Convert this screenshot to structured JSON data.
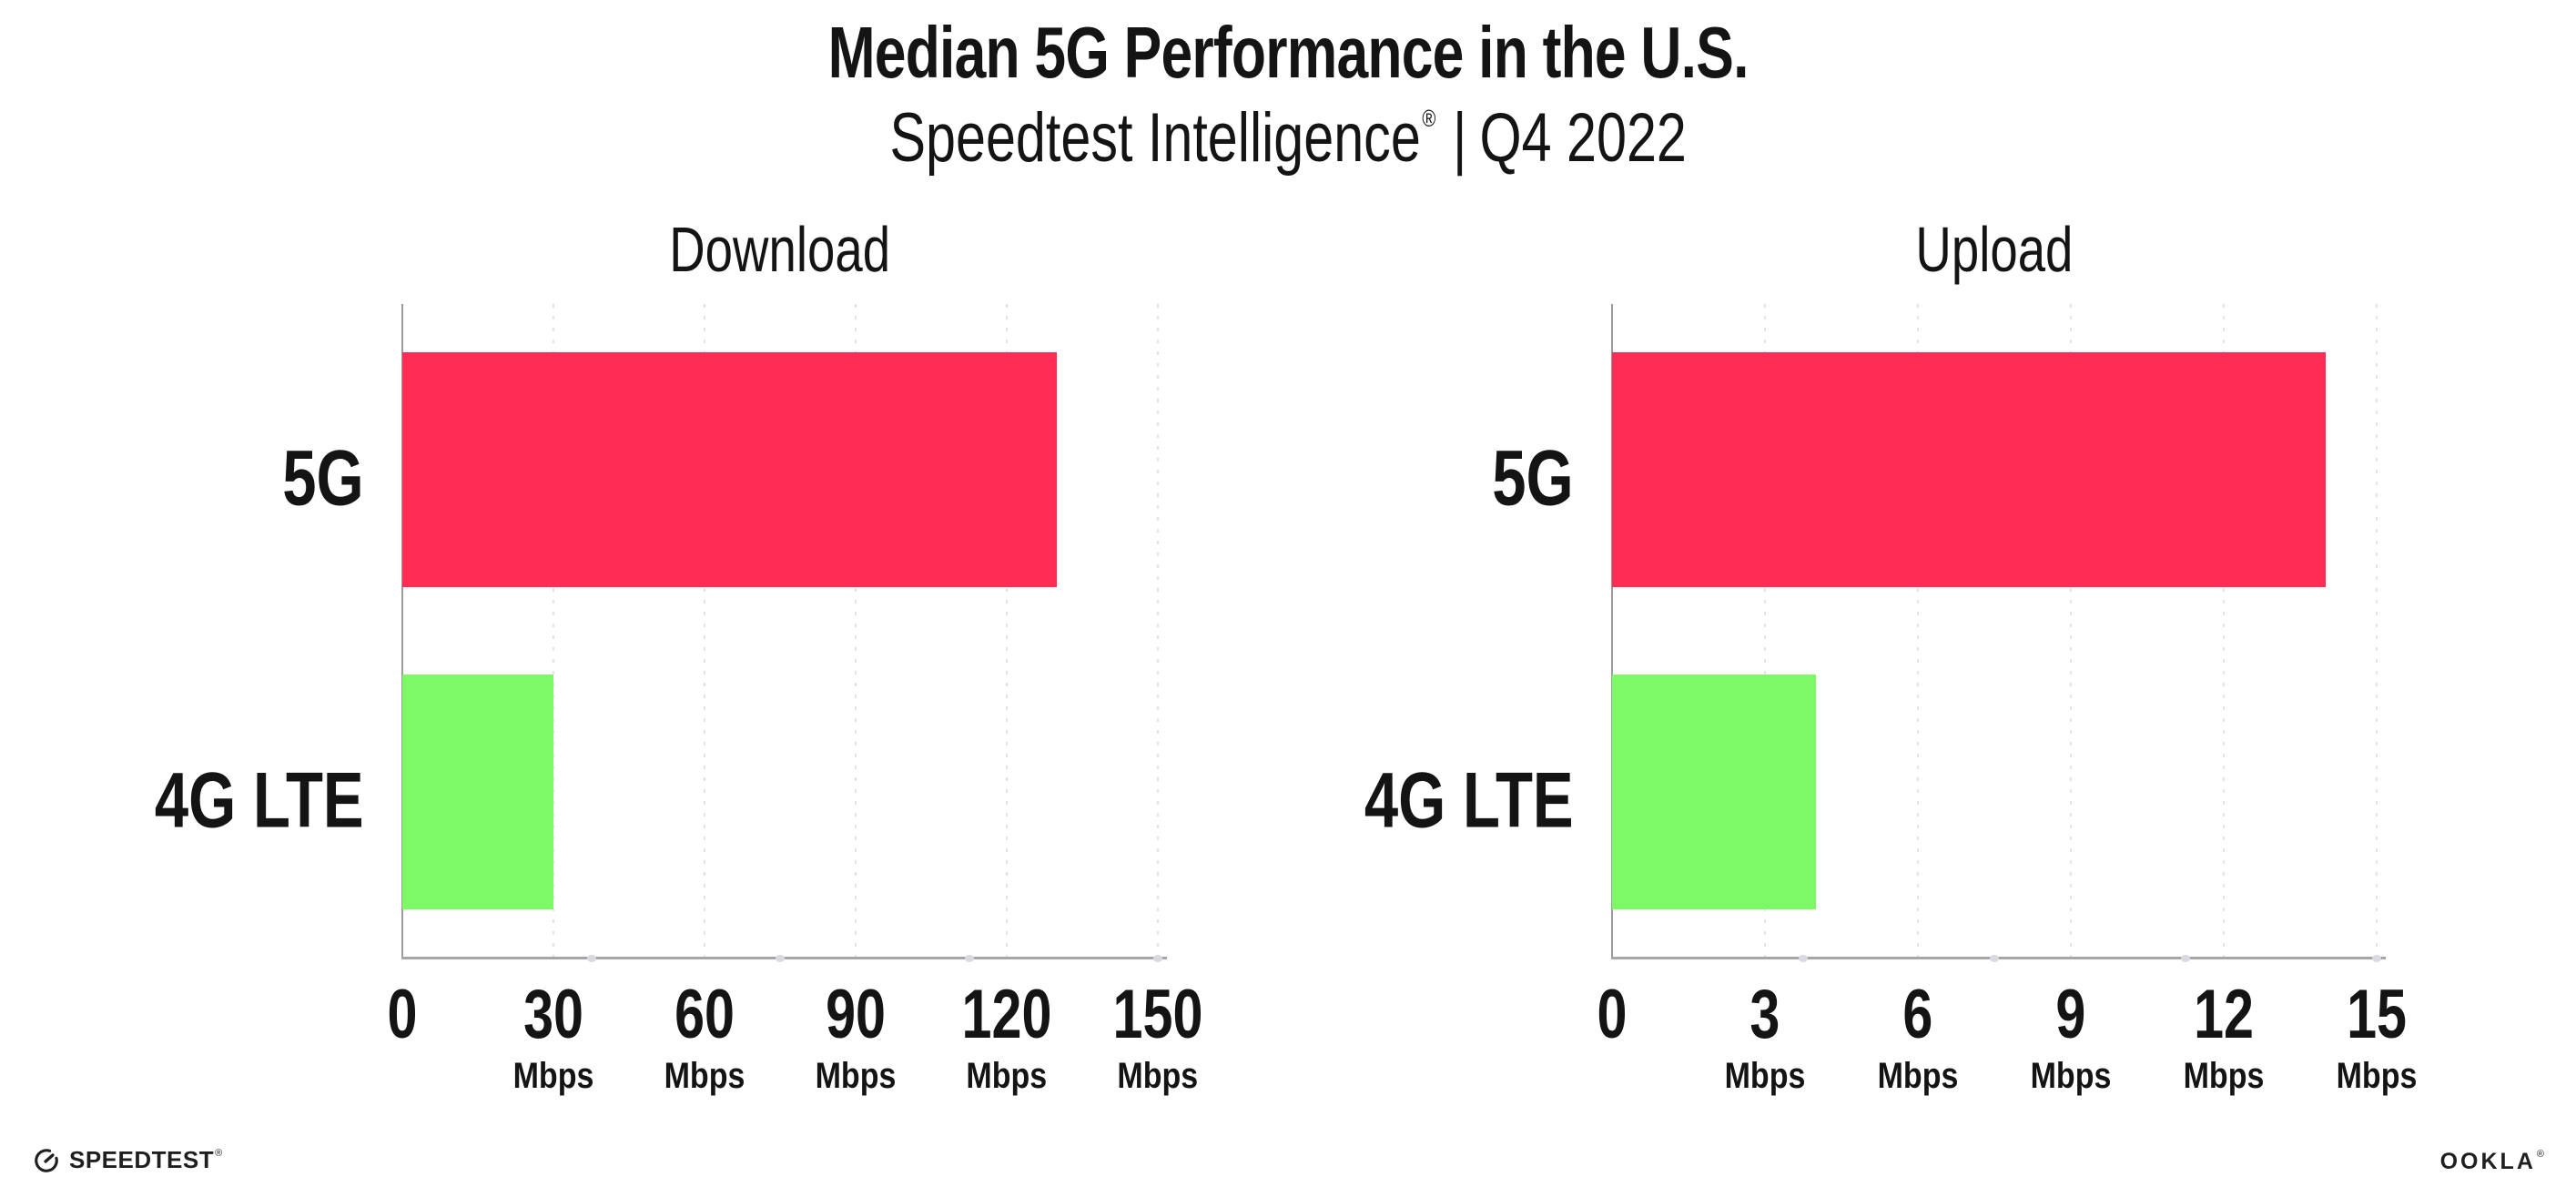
{
  "header": {
    "title": "Median 5G Performance in the U.S.",
    "subtitle": {
      "brand": "Speedtest Intelligence",
      "registered_mark": "®",
      "separator": "|",
      "period": "Q4 2022"
    }
  },
  "chart_data": [
    {
      "type": "bar",
      "orientation": "horizontal",
      "title": "Download",
      "categories": [
        "5G",
        "4G LTE"
      ],
      "values": [
        130,
        30
      ],
      "unit": "Mbps",
      "xlabel_unit": "Mbps",
      "xlim": [
        0,
        150
      ],
      "xticks": [
        0,
        30,
        60,
        90,
        120,
        150
      ],
      "grid": "vertical-dotted",
      "bar_colors": [
        "#FF2D55",
        "#7CF964"
      ]
    },
    {
      "type": "bar",
      "orientation": "horizontal",
      "title": "Upload",
      "categories": [
        "5G",
        "4G LTE"
      ],
      "values": [
        14,
        4
      ],
      "unit": "Mbps",
      "xlabel_unit": "Mbps",
      "xlim": [
        0,
        15
      ],
      "xticks": [
        0,
        3,
        6,
        9,
        12,
        15
      ],
      "grid": "vertical-dotted",
      "bar_colors": [
        "#FF2D55",
        "#7CF964"
      ]
    }
  ],
  "footer": {
    "speedtest_wordmark": "SPEEDTEST",
    "speedtest_mark": "®",
    "ookla_wordmark": "OOKLA",
    "ookla_mark": "®"
  },
  "colors": {
    "bar_5g": "#FF2D55",
    "bar_4g_lte": "#7CF964",
    "axis_line": "#A6A6A6",
    "y_axis_line": "#9C9C9C",
    "gridline_dots": "#E2E2EC",
    "axis_quarter_dots": "#D9D9E2",
    "text": "#141414"
  }
}
